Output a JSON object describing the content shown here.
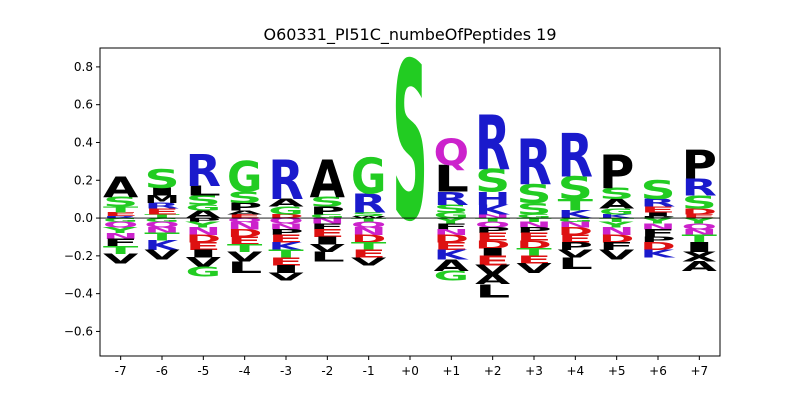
{
  "chart_data": {
    "type": "sequence-logo",
    "title": "O60331_PI51C_numbeOfPeptides 19",
    "xlabel": "",
    "ylabel": "",
    "ylim": [
      -0.73,
      0.9
    ],
    "y_ticks": [
      -0.6,
      -0.4,
      -0.2,
      0.0,
      0.2,
      0.4,
      0.6,
      0.8
    ],
    "y_tick_labels": [
      "−0.6",
      "−0.4",
      "−0.2",
      "0.0",
      "0.2",
      "0.4",
      "0.6",
      "0.8"
    ],
    "x_tick_labels": [
      "-7",
      "-6",
      "-5",
      "-4",
      "-3",
      "-2",
      "-1",
      "+0",
      "+1",
      "+2",
      "+3",
      "+4",
      "+5",
      "+6",
      "+7"
    ],
    "colors": {
      "A": "#000000",
      "V": "#000000",
      "L": "#000000",
      "I": "#000000",
      "P": "#000000",
      "M": "#000000",
      "W": "#000000",
      "F": "#000000",
      "G": "#22cc22",
      "S": "#22cc22",
      "T": "#22cc22",
      "Y": "#22cc22",
      "C": "#22cc22",
      "R": "#1a1acc",
      "K": "#1a1acc",
      "H": "#1a1acc",
      "D": "#dd1111",
      "E": "#dd1111",
      "N": "#cc22cc",
      "Q": "#cc22cc"
    },
    "positions": [
      {
        "pos": "-7",
        "pos_stack": [
          [
            "A",
            0.11
          ],
          [
            "S",
            0.05
          ],
          [
            "T",
            0.03
          ],
          [
            "E",
            0.02
          ],
          [
            "R",
            0.01
          ]
        ],
        "neg_stack": [
          [
            "G",
            0.02
          ],
          [
            "Q",
            0.03
          ],
          [
            "Y",
            0.03
          ],
          [
            "N",
            0.03
          ],
          [
            "F",
            0.04
          ],
          [
            "T",
            0.04
          ],
          [
            "V",
            0.05
          ]
        ]
      },
      {
        "pos": "-6",
        "pos_stack": [
          [
            "S",
            0.1
          ],
          [
            "I",
            0.04
          ],
          [
            "M",
            0.04
          ],
          [
            "R",
            0.03
          ],
          [
            "E",
            0.03
          ],
          [
            "T",
            0.02
          ]
        ],
        "neg_stack": [
          [
            "G",
            0.02
          ],
          [
            "Q",
            0.03
          ],
          [
            "N",
            0.03
          ],
          [
            "T",
            0.04
          ],
          [
            "K",
            0.05
          ],
          [
            "V",
            0.05
          ]
        ]
      },
      {
        "pos": "-5",
        "pos_stack": [
          [
            "R",
            0.17
          ],
          [
            "L",
            0.05
          ],
          [
            "S",
            0.05
          ],
          [
            "G",
            0.03
          ],
          [
            "A",
            0.04
          ]
        ],
        "neg_stack": [
          [
            "P",
            0.02
          ],
          [
            "Y",
            0.03
          ],
          [
            "N",
            0.04
          ],
          [
            "D",
            0.04
          ],
          [
            "E",
            0.04
          ],
          [
            "I",
            0.04
          ],
          [
            "V",
            0.05
          ],
          [
            "G",
            0.05
          ]
        ]
      },
      {
        "pos": "-4",
        "pos_stack": [
          [
            "G",
            0.16
          ],
          [
            "S",
            0.06
          ],
          [
            "P",
            0.04
          ],
          [
            "A",
            0.02
          ],
          [
            "E",
            0.02
          ]
        ],
        "neg_stack": [
          [
            "Q",
            0.02
          ],
          [
            "N",
            0.04
          ],
          [
            "D",
            0.04
          ],
          [
            "E",
            0.04
          ],
          [
            "T",
            0.04
          ],
          [
            "V",
            0.05
          ],
          [
            "L",
            0.06
          ]
        ]
      },
      {
        "pos": "-3",
        "pos_stack": [
          [
            "R",
            0.21
          ],
          [
            "A",
            0.04
          ],
          [
            "G",
            0.04
          ],
          [
            "D",
            0.02
          ]
        ],
        "neg_stack": [
          [
            "Q",
            0.03
          ],
          [
            "N",
            0.03
          ],
          [
            "P",
            0.03
          ],
          [
            "E",
            0.04
          ],
          [
            "K",
            0.04
          ],
          [
            "T",
            0.04
          ],
          [
            "E",
            0.04
          ],
          [
            "I",
            0.04
          ],
          [
            "V",
            0.04
          ]
        ]
      },
      {
        "pos": "-2",
        "pos_stack": [
          [
            "A",
            0.2
          ],
          [
            "S",
            0.05
          ],
          [
            "P",
            0.04
          ],
          [
            "G",
            0.02
          ]
        ],
        "neg_stack": [
          [
            "N",
            0.03
          ],
          [
            "F",
            0.03
          ],
          [
            "E",
            0.04
          ],
          [
            "I",
            0.04
          ],
          [
            "V",
            0.04
          ],
          [
            "L",
            0.05
          ]
        ]
      },
      {
        "pos": "-1",
        "pos_stack": [
          [
            "G",
            0.19
          ],
          [
            "R",
            0.1
          ],
          [
            "S",
            0.02
          ],
          [
            "W",
            0.01
          ]
        ],
        "neg_stack": [
          [
            "T",
            0.02
          ],
          [
            "Q",
            0.03
          ],
          [
            "N",
            0.04
          ],
          [
            "D",
            0.04
          ],
          [
            "T",
            0.04
          ],
          [
            "E",
            0.04
          ],
          [
            "V",
            0.04
          ]
        ]
      },
      {
        "pos": "+0",
        "pos_stack": [
          [
            "S",
            0.84
          ]
        ],
        "neg_stack": []
      },
      {
        "pos": "+1",
        "pos_stack": [
          [
            "Q",
            0.14
          ],
          [
            "L",
            0.14
          ],
          [
            "R",
            0.07
          ],
          [
            "S",
            0.04
          ],
          [
            "G",
            0.03
          ]
        ],
        "neg_stack": [
          [
            "Y",
            0.03
          ],
          [
            "F",
            0.03
          ],
          [
            "N",
            0.03
          ],
          [
            "D",
            0.04
          ],
          [
            "E",
            0.04
          ],
          [
            "K",
            0.05
          ],
          [
            "A",
            0.06
          ],
          [
            "G",
            0.05
          ]
        ]
      },
      {
        "pos": "+2",
        "pos_stack": [
          [
            "R",
            0.29
          ],
          [
            "S",
            0.12
          ],
          [
            "H",
            0.07
          ],
          [
            "K",
            0.05
          ],
          [
            "N",
            0.02
          ]
        ],
        "neg_stack": [
          [
            "T",
            0.02
          ],
          [
            "Q",
            0.03
          ],
          [
            "P",
            0.03
          ],
          [
            "E",
            0.04
          ],
          [
            "D",
            0.04
          ],
          [
            "I",
            0.04
          ],
          [
            "E",
            0.05
          ],
          [
            "V",
            0.05
          ],
          [
            "A",
            0.05
          ],
          [
            "L",
            0.07
          ]
        ]
      },
      {
        "pos": "+3",
        "pos_stack": [
          [
            "R",
            0.24
          ],
          [
            "S",
            0.1
          ],
          [
            "S",
            0.06
          ],
          [
            "G",
            0.02
          ]
        ],
        "neg_stack": [
          [
            "T",
            0.02
          ],
          [
            "N",
            0.03
          ],
          [
            "P",
            0.03
          ],
          [
            "E",
            0.04
          ],
          [
            "D",
            0.04
          ],
          [
            "T",
            0.04
          ],
          [
            "E",
            0.04
          ],
          [
            "V",
            0.05
          ]
        ]
      },
      {
        "pos": "+4",
        "pos_stack": [
          [
            "R",
            0.23
          ],
          [
            "S",
            0.12
          ],
          [
            "T",
            0.06
          ],
          [
            "K",
            0.04
          ]
        ],
        "neg_stack": [
          [
            "G",
            0.02
          ],
          [
            "N",
            0.03
          ],
          [
            "D",
            0.04
          ],
          [
            "E",
            0.04
          ],
          [
            "P",
            0.04
          ],
          [
            "V",
            0.04
          ],
          [
            "L",
            0.06
          ]
        ]
      },
      {
        "pos": "+5",
        "pos_stack": [
          [
            "P",
            0.18
          ],
          [
            "S",
            0.06
          ],
          [
            "A",
            0.05
          ],
          [
            "G",
            0.03
          ],
          [
            "K",
            0.02
          ]
        ],
        "neg_stack": [
          [
            "T",
            0.02
          ],
          [
            "Y",
            0.03
          ],
          [
            "N",
            0.04
          ],
          [
            "D",
            0.04
          ],
          [
            "F",
            0.04
          ],
          [
            "V",
            0.05
          ]
        ]
      },
      {
        "pos": "+6",
        "pos_stack": [
          [
            "S",
            0.1
          ],
          [
            "R",
            0.04
          ],
          [
            "E",
            0.03
          ],
          [
            "I",
            0.02
          ],
          [
            "P",
            0.01
          ]
        ],
        "neg_stack": [
          [
            "Y",
            0.03
          ],
          [
            "N",
            0.03
          ],
          [
            "F",
            0.04
          ],
          [
            "P",
            0.03
          ],
          [
            "D",
            0.04
          ],
          [
            "K",
            0.04
          ]
        ]
      },
      {
        "pos": "+7",
        "pos_stack": [
          [
            "P",
            0.15
          ],
          [
            "R",
            0.09
          ],
          [
            "S",
            0.07
          ],
          [
            "D",
            0.03
          ],
          [
            "E",
            0.02
          ]
        ],
        "neg_stack": [
          [
            "Y",
            0.03
          ],
          [
            "Q",
            0.03
          ],
          [
            "N",
            0.03
          ],
          [
            "T",
            0.04
          ],
          [
            "I",
            0.05
          ],
          [
            "X",
            0.05
          ],
          [
            "A",
            0.05
          ]
        ]
      }
    ]
  }
}
